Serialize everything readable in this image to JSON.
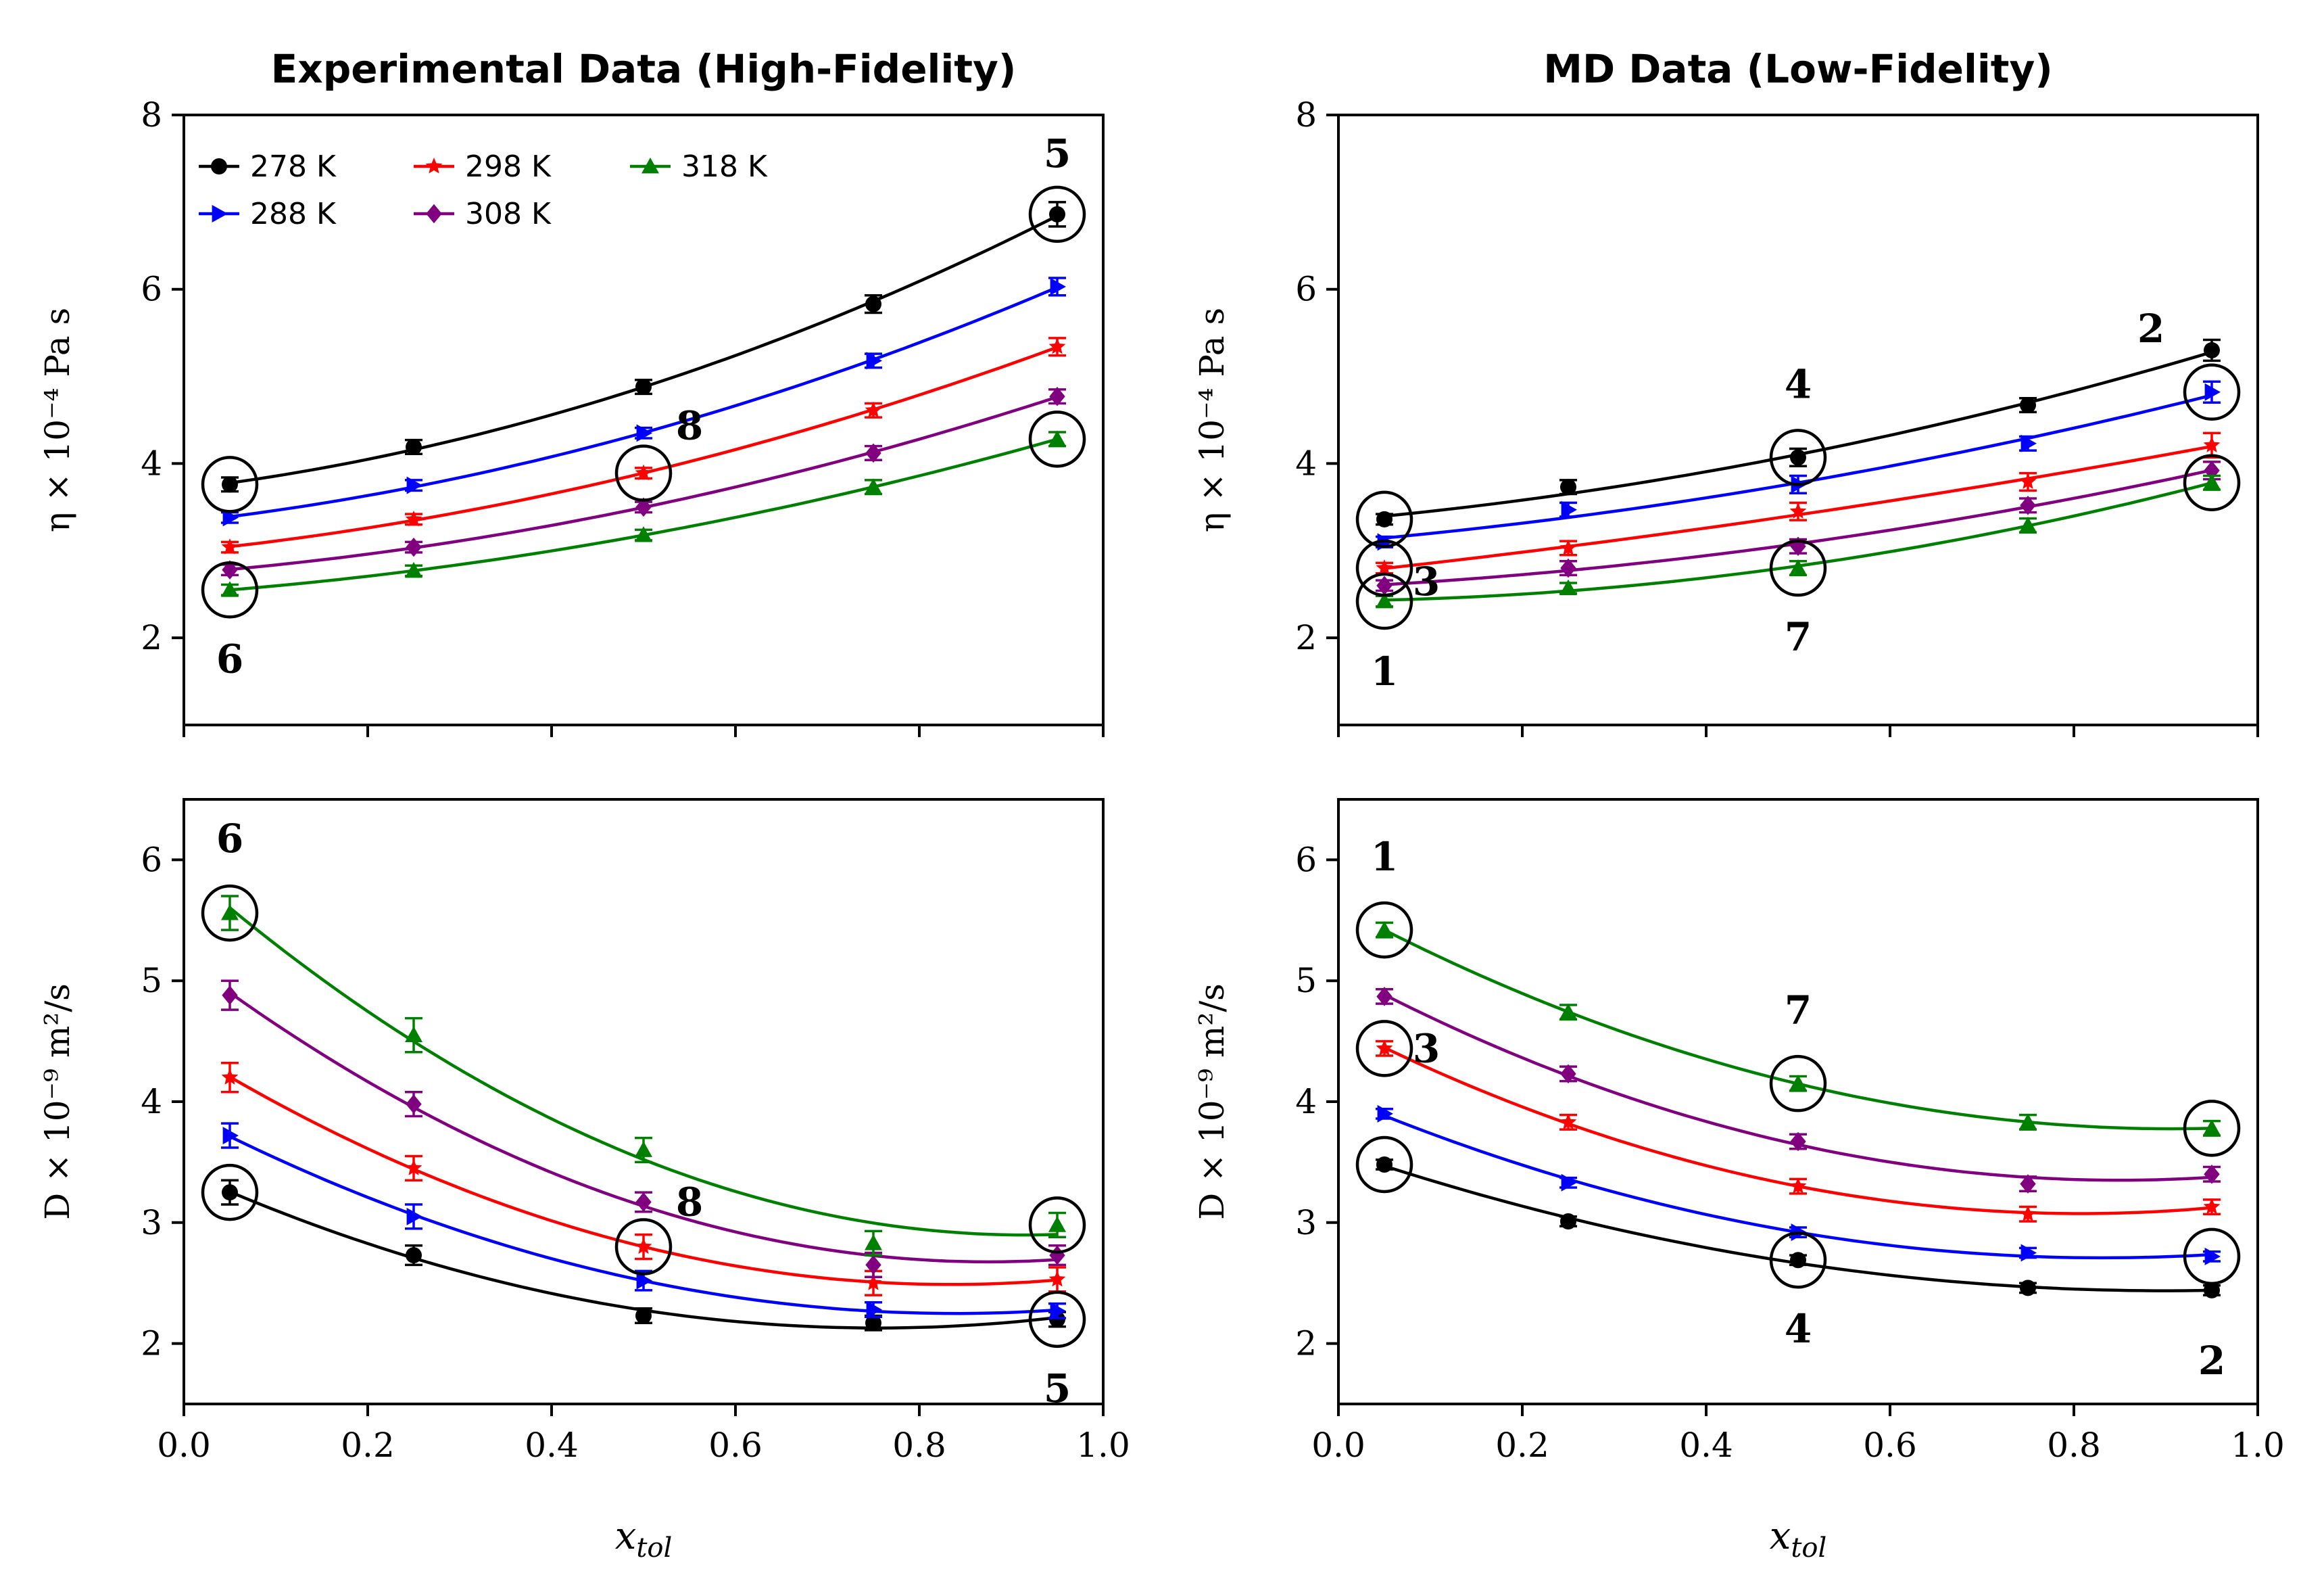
{
  "chart_data": [
    {
      "type": "line",
      "panel": "top-left",
      "title": "Experimental Data (High-Fidelity)",
      "ylabel": "η × 10⁻⁴ Pa s",
      "xlabel": "",
      "xlim": [
        0.0,
        1.0
      ],
      "ylim": [
        1,
        8
      ],
      "yticks": [
        2,
        4,
        6,
        8
      ],
      "xticks": [
        0.0,
        0.2,
        0.4,
        0.6,
        0.8,
        1.0
      ],
      "show_xticklabels": false,
      "x": [
        0.05,
        0.25,
        0.5,
        0.75,
        0.95
      ],
      "series": [
        {
          "name": "278 K",
          "values": [
            3.76,
            4.19,
            4.88,
            5.83,
            6.86
          ],
          "errors": [
            0.08,
            0.08,
            0.08,
            0.1,
            0.14
          ]
        },
        {
          "name": "288 K",
          "values": [
            3.38,
            3.75,
            4.35,
            5.18,
            6.03
          ],
          "errors": [
            0.06,
            0.06,
            0.06,
            0.08,
            0.1
          ]
        },
        {
          "name": "298 K",
          "values": [
            3.04,
            3.36,
            3.89,
            4.61,
            5.34
          ],
          "errors": [
            0.06,
            0.06,
            0.06,
            0.08,
            0.1
          ]
        },
        {
          "name": "308 K",
          "values": [
            2.78,
            3.04,
            3.5,
            4.12,
            4.77
          ],
          "errors": [
            0.06,
            0.06,
            0.06,
            0.08,
            0.08
          ]
        },
        {
          "name": "318 K",
          "values": [
            2.55,
            2.77,
            3.18,
            3.73,
            4.28
          ],
          "errors": [
            0.06,
            0.06,
            0.06,
            0.08,
            0.08
          ]
        }
      ],
      "annotations": [
        {
          "label": "5",
          "x": 0.95,
          "y": 6.86
        },
        {
          "label": "8",
          "x": 0.5,
          "y": 3.89
        },
        {
          "label": "6",
          "x": 0.05,
          "y": 2.55
        }
      ],
      "circled_points": [
        {
          "x": 0.05,
          "y": 3.76
        },
        {
          "x": 0.05,
          "y": 2.55
        },
        {
          "x": 0.5,
          "y": 3.89
        },
        {
          "x": 0.95,
          "y": 6.86
        },
        {
          "x": 0.95,
          "y": 4.28
        }
      ],
      "legend": "top-left"
    },
    {
      "type": "line",
      "panel": "top-right",
      "title": "MD Data (Low-Fidelity)",
      "ylabel": "η × 10⁻⁴ Pa s",
      "xlabel": "",
      "xlim": [
        0.0,
        1.0
      ],
      "ylim": [
        1,
        8
      ],
      "yticks": [
        2,
        4,
        6,
        8
      ],
      "xticks": [
        0.0,
        0.2,
        0.4,
        0.6,
        0.8,
        1.0
      ],
      "show_xticklabels": false,
      "x": [
        0.05,
        0.25,
        0.5,
        0.75,
        0.95
      ],
      "series": [
        {
          "name": "278 K",
          "values": [
            3.36,
            3.73,
            4.07,
            4.67,
            5.3
          ],
          "errors": [
            0.06,
            0.08,
            0.1,
            0.08,
            0.12
          ]
        },
        {
          "name": "288 K",
          "values": [
            3.1,
            3.47,
            3.76,
            4.23,
            4.82
          ],
          "errors": [
            0.06,
            0.08,
            0.1,
            0.08,
            0.12
          ]
        },
        {
          "name": "298 K",
          "values": [
            2.8,
            3.03,
            3.45,
            3.79,
            4.21
          ],
          "errors": [
            0.06,
            0.08,
            0.1,
            0.1,
            0.14
          ]
        },
        {
          "name": "308 K",
          "values": [
            2.6,
            2.8,
            3.05,
            3.52,
            3.92
          ],
          "errors": [
            0.06,
            0.08,
            0.08,
            0.08,
            0.1
          ]
        },
        {
          "name": "318 K",
          "values": [
            2.42,
            2.57,
            2.8,
            3.29,
            3.78
          ],
          "errors": [
            0.06,
            0.06,
            0.08,
            0.08,
            0.08
          ]
        }
      ],
      "annotations": [
        {
          "label": "2",
          "x": 0.95,
          "y": 5.3
        },
        {
          "label": "4",
          "x": 0.5,
          "y": 4.07
        },
        {
          "label": "3",
          "x": 0.05,
          "y": 2.8
        },
        {
          "label": "7",
          "x": 0.5,
          "y": 2.8
        },
        {
          "label": "1",
          "x": 0.05,
          "y": 2.42
        }
      ],
      "circled_points": [
        {
          "x": 0.05,
          "y": 3.36
        },
        {
          "x": 0.05,
          "y": 2.8
        },
        {
          "x": 0.05,
          "y": 2.42
        },
        {
          "x": 0.5,
          "y": 4.07
        },
        {
          "x": 0.5,
          "y": 2.8
        },
        {
          "x": 0.95,
          "y": 4.82
        },
        {
          "x": 0.95,
          "y": 3.78
        }
      ]
    },
    {
      "type": "line",
      "panel": "bottom-left",
      "title": "",
      "ylabel": "D × 10⁻⁹ m²/s",
      "xlabel": "x_tol",
      "xlim": [
        0.0,
        1.0
      ],
      "ylim": [
        1.5,
        6.5
      ],
      "yticks": [
        2,
        3,
        4,
        5,
        6
      ],
      "xticks": [
        0.0,
        0.2,
        0.4,
        0.6,
        0.8,
        1.0
      ],
      "show_xticklabels": true,
      "x": [
        0.05,
        0.25,
        0.5,
        0.75,
        0.95
      ],
      "series": [
        {
          "name": "278 K",
          "values": [
            3.25,
            2.73,
            2.23,
            2.17,
            2.2
          ],
          "errors": [
            0.1,
            0.08,
            0.06,
            0.06,
            0.06
          ]
        },
        {
          "name": "288 K",
          "values": [
            3.72,
            3.05,
            2.52,
            2.28,
            2.27
          ],
          "errors": [
            0.1,
            0.1,
            0.08,
            0.06,
            0.06
          ]
        },
        {
          "name": "298 K",
          "values": [
            4.2,
            3.45,
            2.8,
            2.5,
            2.53
          ],
          "errors": [
            0.12,
            0.1,
            0.1,
            0.1,
            0.1
          ]
        },
        {
          "name": "308 K",
          "values": [
            4.88,
            3.98,
            3.17,
            2.65,
            2.73
          ],
          "errors": [
            0.12,
            0.1,
            0.08,
            0.1,
            0.08
          ]
        },
        {
          "name": "318 K",
          "values": [
            5.56,
            4.55,
            3.6,
            2.83,
            2.98
          ],
          "errors": [
            0.14,
            0.14,
            0.1,
            0.1,
            0.1
          ]
        }
      ],
      "annotations": [
        {
          "label": "6",
          "x": 0.05,
          "y": 5.56
        },
        {
          "label": "8",
          "x": 0.5,
          "y": 2.8
        },
        {
          "label": "5",
          "x": 0.95,
          "y": 2.2
        }
      ],
      "circled_points": [
        {
          "x": 0.05,
          "y": 5.56
        },
        {
          "x": 0.05,
          "y": 3.25
        },
        {
          "x": 0.5,
          "y": 2.8
        },
        {
          "x": 0.95,
          "y": 2.98
        },
        {
          "x": 0.95,
          "y": 2.2
        }
      ]
    },
    {
      "type": "line",
      "panel": "bottom-right",
      "title": "",
      "ylabel": "D × 10⁻⁹ m²/s",
      "xlabel": "x_tol",
      "xlim": [
        0.0,
        1.0
      ],
      "ylim": [
        1.5,
        6.5
      ],
      "yticks": [
        2,
        3,
        4,
        5,
        6
      ],
      "xticks": [
        0.0,
        0.2,
        0.4,
        0.6,
        0.8,
        1.0
      ],
      "show_xticklabels": true,
      "x": [
        0.05,
        0.25,
        0.5,
        0.75,
        0.95
      ],
      "series": [
        {
          "name": "278 K",
          "values": [
            3.48,
            3.01,
            2.69,
            2.46,
            2.44
          ],
          "errors": [
            0.04,
            0.04,
            0.04,
            0.04,
            0.04
          ]
        },
        {
          "name": "288 K",
          "values": [
            3.9,
            3.33,
            2.92,
            2.75,
            2.72
          ],
          "errors": [
            0.04,
            0.04,
            0.04,
            0.04,
            0.04
          ]
        },
        {
          "name": "298 K",
          "values": [
            4.44,
            3.83,
            3.3,
            3.07,
            3.13
          ],
          "errors": [
            0.06,
            0.06,
            0.06,
            0.06,
            0.06
          ]
        },
        {
          "name": "308 K",
          "values": [
            4.87,
            4.23,
            3.67,
            3.32,
            3.4
          ],
          "errors": [
            0.06,
            0.06,
            0.06,
            0.06,
            0.06
          ]
        },
        {
          "name": "318 K",
          "values": [
            5.42,
            4.74,
            4.15,
            3.83,
            3.78
          ],
          "errors": [
            0.06,
            0.06,
            0.06,
            0.06,
            0.06
          ]
        }
      ],
      "annotations": [
        {
          "label": "1",
          "x": 0.05,
          "y": 5.42
        },
        {
          "label": "3",
          "x": 0.05,
          "y": 4.44
        },
        {
          "label": "7",
          "x": 0.5,
          "y": 4.15
        },
        {
          "label": "4",
          "x": 0.5,
          "y": 2.69
        },
        {
          "label": "2",
          "x": 0.95,
          "y": 2.44
        }
      ],
      "circled_points": [
        {
          "x": 0.05,
          "y": 5.42
        },
        {
          "x": 0.05,
          "y": 4.44
        },
        {
          "x": 0.05,
          "y": 3.48
        },
        {
          "x": 0.5,
          "y": 4.15
        },
        {
          "x": 0.5,
          "y": 2.69
        },
        {
          "x": 0.95,
          "y": 3.78
        },
        {
          "x": 0.95,
          "y": 2.72
        }
      ]
    }
  ],
  "series_style": {
    "278 K": {
      "color": "#000000",
      "marker": "circle"
    },
    "288 K": {
      "color": "#0000ff",
      "marker": "triangle-right"
    },
    "298 K": {
      "color": "#ff0000",
      "marker": "star"
    },
    "308 K": {
      "color": "#800080",
      "marker": "diamond"
    },
    "318 K": {
      "color": "#008000",
      "marker": "triangle-up"
    }
  }
}
